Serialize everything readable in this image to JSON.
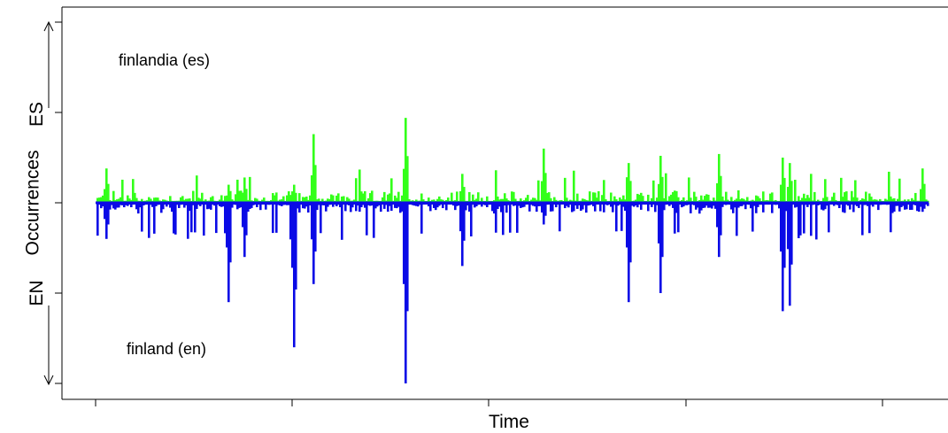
{
  "chart_data": {
    "type": "bar",
    "title": "",
    "xlabel": "Time",
    "ylabel": "Occurrences",
    "upper_axis_label": "ES",
    "lower_axis_label": "EN",
    "annotations": {
      "upper": "finlandia (es)",
      "lower": "finland (en)"
    },
    "x_range": [
      0,
      1000
    ],
    "ylim": [
      -1,
      1
    ],
    "colors": {
      "es": "#33ff1a",
      "en": "#0a0ae6",
      "axis": "#000000"
    },
    "series": [
      {
        "name": "finlandia (es)",
        "direction": "up"
      },
      {
        "name": "finland (en)",
        "direction": "down"
      }
    ],
    "peaks": [
      {
        "x": 10,
        "es": 0.19,
        "en": 0.2
      },
      {
        "x": 158,
        "es": 0.1,
        "en": 0.55
      },
      {
        "x": 176,
        "es": 0.14,
        "en": 0.3
      },
      {
        "x": 236,
        "es": 0.1,
        "en": 0.8
      },
      {
        "x": 261,
        "es": 0.38,
        "en": 0.45
      },
      {
        "x": 370,
        "es": 0.47,
        "en": 0.95
      },
      {
        "x": 371,
        "es": 0.35,
        "en": 1.0
      },
      {
        "x": 440,
        "es": 0.16,
        "en": 0.35
      },
      {
        "x": 537,
        "es": 0.3,
        "en": 0.12
      },
      {
        "x": 640,
        "es": 0.22,
        "en": 0.55
      },
      {
        "x": 678,
        "es": 0.26,
        "en": 0.5
      },
      {
        "x": 748,
        "es": 0.27,
        "en": 0.3
      },
      {
        "x": 826,
        "es": 0.25,
        "en": 0.6
      },
      {
        "x": 833,
        "es": 0.22,
        "en": 0.57
      },
      {
        "x": 993,
        "es": 0.19,
        "en": 0.05
      }
    ]
  }
}
